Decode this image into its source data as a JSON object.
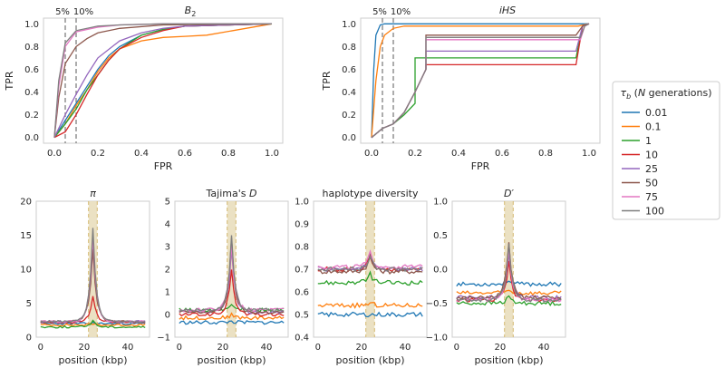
{
  "colors": {
    "0.01": "#1f77b4",
    "0.1": "#ff7f0e",
    "1": "#2ca02c",
    "10": "#d62728",
    "25": "#9467bd",
    "50": "#8c564b",
    "75": "#e377c2",
    "100": "#7f7f7f",
    "threshold_line": "#7f7f7f",
    "shade": "#e8dcb8",
    "shade_edge": "#d4b870"
  },
  "legend": {
    "title": "τ_b (N generations)",
    "entries": [
      "0.01",
      "0.1",
      "1",
      "10",
      "25",
      "50",
      "75",
      "100"
    ]
  },
  "chart_data": [
    {
      "id": "roc-b2",
      "type": "line",
      "title": "B2",
      "title_main": "B",
      "title_sub": "2",
      "xlabel": "FPR",
      "ylabel": "TPR",
      "xlim": [
        -0.05,
        1.05
      ],
      "ylim": [
        -0.05,
        1.05
      ],
      "xticks": [
        "0.0",
        "0.2",
        "0.4",
        "0.6",
        "0.8",
        "1.0"
      ],
      "yticks": [
        "0.0",
        "0.2",
        "0.4",
        "0.6",
        "0.8",
        "1.0"
      ],
      "thresholds": [
        {
          "label": "5%",
          "x": 0.05
        },
        {
          "label": "10%",
          "x": 0.1
        }
      ],
      "series": [
        {
          "name": "0.01",
          "x": [
            0,
            0.05,
            0.1,
            0.15,
            0.2,
            0.25,
            0.3,
            0.4,
            0.5,
            0.6,
            1.0
          ],
          "y": [
            0,
            0.15,
            0.3,
            0.45,
            0.6,
            0.72,
            0.8,
            0.9,
            0.95,
            0.98,
            1.0
          ]
        },
        {
          "name": "0.1",
          "x": [
            0,
            0.05,
            0.1,
            0.15,
            0.2,
            0.25,
            0.3,
            0.4,
            0.5,
            0.6,
            0.7,
            1.0
          ],
          "y": [
            0,
            0.12,
            0.28,
            0.42,
            0.58,
            0.7,
            0.78,
            0.85,
            0.88,
            0.89,
            0.9,
            1.0
          ]
        },
        {
          "name": "1",
          "x": [
            0,
            0.05,
            0.1,
            0.15,
            0.2,
            0.25,
            0.3,
            0.4,
            0.5,
            0.6,
            1.0
          ],
          "y": [
            0,
            0.12,
            0.25,
            0.42,
            0.55,
            0.68,
            0.78,
            0.9,
            0.95,
            0.98,
            1.0
          ]
        },
        {
          "name": "10",
          "x": [
            0,
            0.05,
            0.1,
            0.15,
            0.2,
            0.25,
            0.3,
            0.4,
            0.5,
            0.6,
            1.0
          ],
          "y": [
            0,
            0.05,
            0.2,
            0.38,
            0.55,
            0.68,
            0.78,
            0.88,
            0.94,
            0.98,
            1.0
          ]
        },
        {
          "name": "25",
          "x": [
            0,
            0.05,
            0.1,
            0.15,
            0.2,
            0.3,
            0.4,
            0.5,
            0.6,
            1.0
          ],
          "y": [
            0,
            0.2,
            0.38,
            0.55,
            0.7,
            0.85,
            0.92,
            0.96,
            0.98,
            1.0
          ]
        },
        {
          "name": "50",
          "x": [
            0,
            0.02,
            0.05,
            0.1,
            0.15,
            0.2,
            0.3,
            0.5,
            1.0
          ],
          "y": [
            0,
            0.35,
            0.65,
            0.8,
            0.87,
            0.92,
            0.96,
            0.99,
            1.0
          ]
        },
        {
          "name": "75",
          "x": [
            0,
            0.02,
            0.05,
            0.1,
            0.2,
            0.3,
            0.5,
            1.0
          ],
          "y": [
            0,
            0.45,
            0.8,
            0.93,
            0.97,
            0.99,
            1.0,
            1.0
          ]
        },
        {
          "name": "100",
          "x": [
            0,
            0.02,
            0.05,
            0.1,
            0.2,
            0.3,
            0.5,
            1.0
          ],
          "y": [
            0,
            0.5,
            0.83,
            0.94,
            0.98,
            0.99,
            1.0,
            1.0
          ]
        }
      ]
    },
    {
      "id": "roc-ihs",
      "type": "line",
      "title": "iHS",
      "title_main": "iHS",
      "title_sub": "",
      "xlabel": "FPR",
      "ylabel": "TPR",
      "xlim": [
        -0.05,
        1.05
      ],
      "ylim": [
        -0.05,
        1.05
      ],
      "xticks": [
        "0.0",
        "0.2",
        "0.4",
        "0.6",
        "0.8",
        "1.0"
      ],
      "yticks": [
        "0.0",
        "0.2",
        "0.4",
        "0.6",
        "0.8",
        "1.0"
      ],
      "thresholds": [
        {
          "label": "5%",
          "x": 0.05
        },
        {
          "label": "10%",
          "x": 0.1
        }
      ],
      "series": [
        {
          "name": "0.01",
          "x": [
            0,
            0.01,
            0.02,
            0.04,
            0.06,
            1.0
          ],
          "y": [
            0,
            0.6,
            0.9,
            0.99,
            1.0,
            1.0
          ]
        },
        {
          "name": "0.1",
          "x": [
            0,
            0.02,
            0.04,
            0.06,
            0.1,
            0.15,
            0.95,
            1.0
          ],
          "y": [
            0,
            0.5,
            0.8,
            0.9,
            0.96,
            0.98,
            0.98,
            1.0
          ]
        },
        {
          "name": "1",
          "x": [
            0,
            0.05,
            0.1,
            0.15,
            0.2,
            0.2,
            0.94,
            0.97,
            1.0
          ],
          "y": [
            0,
            0.08,
            0.12,
            0.2,
            0.3,
            0.7,
            0.7,
            0.98,
            1.0
          ]
        },
        {
          "name": "10",
          "x": [
            0,
            0.05,
            0.1,
            0.15,
            0.2,
            0.25,
            0.25,
            0.94,
            0.97,
            1.0
          ],
          "y": [
            0,
            0.08,
            0.12,
            0.22,
            0.4,
            0.6,
            0.64,
            0.64,
            0.98,
            1.0
          ]
        },
        {
          "name": "25",
          "x": [
            0,
            0.05,
            0.1,
            0.15,
            0.2,
            0.25,
            0.25,
            0.94,
            0.97,
            1.0
          ],
          "y": [
            0,
            0.08,
            0.12,
            0.22,
            0.4,
            0.6,
            0.76,
            0.76,
            0.98,
            1.0
          ]
        },
        {
          "name": "50",
          "x": [
            0,
            0.05,
            0.1,
            0.15,
            0.2,
            0.25,
            0.25,
            0.94,
            0.97,
            1.0
          ],
          "y": [
            0,
            0.08,
            0.12,
            0.22,
            0.4,
            0.6,
            0.9,
            0.9,
            0.98,
            1.0
          ]
        },
        {
          "name": "75",
          "x": [
            0,
            0.05,
            0.1,
            0.15,
            0.2,
            0.25,
            0.25,
            0.96,
            0.98,
            1.0
          ],
          "y": [
            0,
            0.08,
            0.12,
            0.22,
            0.4,
            0.6,
            0.86,
            0.86,
            0.98,
            1.0
          ]
        },
        {
          "name": "100",
          "x": [
            0,
            0.05,
            0.1,
            0.15,
            0.2,
            0.25,
            0.25,
            0.96,
            0.98,
            1.0
          ],
          "y": [
            0,
            0.08,
            0.12,
            0.22,
            0.4,
            0.6,
            0.88,
            0.88,
            0.98,
            1.0
          ]
        }
      ]
    },
    {
      "id": "stat-pi",
      "type": "line",
      "title": "π",
      "title_main": "π",
      "title_sub": "",
      "xlabel": "position (kbp)",
      "ylabel": "",
      "xlim": [
        -2,
        50
      ],
      "ylim": [
        0,
        20
      ],
      "xticks": [
        "0",
        "20",
        "40"
      ],
      "yticks": [
        "0",
        "5",
        "10",
        "15",
        "20"
      ],
      "xtick_values": [
        0,
        20,
        40
      ],
      "ytick_values": [
        0,
        5,
        10,
        15,
        20
      ],
      "shade": [
        22,
        26
      ],
      "series": [
        {
          "name": "0.01",
          "baseline": 2.0,
          "peak": 2.1,
          "noise": 0.15
        },
        {
          "name": "0.1",
          "baseline": 1.8,
          "peak": 2.0,
          "noise": 0.15
        },
        {
          "name": "1",
          "baseline": 1.5,
          "peak": 2.5,
          "noise": 0.15
        },
        {
          "name": "10",
          "baseline": 2.2,
          "peak": 6.0,
          "noise": 0.15
        },
        {
          "name": "25",
          "baseline": 2.3,
          "peak": 14.0,
          "noise": 0.15
        },
        {
          "name": "50",
          "baseline": 2.3,
          "peak": 13.0,
          "noise": 0.15
        },
        {
          "name": "75",
          "baseline": 2.3,
          "peak": 15.0,
          "noise": 0.15
        },
        {
          "name": "100",
          "baseline": 2.3,
          "peak": 16.0,
          "noise": 0.15
        }
      ]
    },
    {
      "id": "stat-tajima",
      "type": "line",
      "title": "Tajima's D",
      "title_main": "Tajima's ",
      "title_it": "D",
      "title_sub": "",
      "xlabel": "position (kbp)",
      "ylabel": "",
      "xlim": [
        -2,
        50
      ],
      "ylim": [
        -1,
        5
      ],
      "xticks": [
        "0",
        "20",
        "40"
      ],
      "yticks": [
        "−1",
        "0",
        "1",
        "2",
        "3",
        "4",
        "5"
      ],
      "xtick_values": [
        0,
        20,
        40
      ],
      "ytick_values": [
        -1,
        0,
        1,
        2,
        3,
        4,
        5
      ],
      "shade": [
        22,
        26
      ],
      "series": [
        {
          "name": "0.01",
          "baseline": -0.35,
          "peak": -0.3,
          "noise": 0.08
        },
        {
          "name": "0.1",
          "baseline": -0.15,
          "peak": 0.0,
          "noise": 0.08
        },
        {
          "name": "1",
          "baseline": 0.2,
          "peak": 0.5,
          "noise": 0.08
        },
        {
          "name": "10",
          "baseline": 0.0,
          "peak": 2.0,
          "noise": 0.08
        },
        {
          "name": "25",
          "baseline": 0.1,
          "peak": 2.9,
          "noise": 0.08
        },
        {
          "name": "50",
          "baseline": 0.1,
          "peak": 3.3,
          "noise": 0.08
        },
        {
          "name": "75",
          "baseline": 0.2,
          "peak": 3.1,
          "noise": 0.08
        },
        {
          "name": "100",
          "baseline": 0.2,
          "peak": 3.5,
          "noise": 0.08
        }
      ]
    },
    {
      "id": "stat-hapdiv",
      "type": "line",
      "title": "haplotype diversity",
      "title_main": "haplotype diversity",
      "title_sub": "",
      "xlabel": "position (kbp)",
      "ylabel": "",
      "xlim": [
        -2,
        50
      ],
      "ylim": [
        0.4,
        1.0
      ],
      "xticks": [
        "0",
        "20",
        "40"
      ],
      "yticks": [
        "0.4",
        "0.5",
        "0.6",
        "0.7",
        "0.8",
        "0.9",
        "1.0"
      ],
      "xtick_values": [
        0,
        20,
        40
      ],
      "ytick_values": [
        0.4,
        0.5,
        0.6,
        0.7,
        0.8,
        0.9,
        1.0
      ],
      "shade": [
        22,
        26
      ],
      "series": [
        {
          "name": "0.01",
          "baseline": 0.5,
          "peak": 0.5,
          "noise": 0.01
        },
        {
          "name": "0.1",
          "baseline": 0.54,
          "peak": 0.55,
          "noise": 0.01
        },
        {
          "name": "1",
          "baseline": 0.64,
          "peak": 0.68,
          "noise": 0.01
        },
        {
          "name": "10",
          "baseline": 0.7,
          "peak": 0.76,
          "noise": 0.01
        },
        {
          "name": "25",
          "baseline": 0.7,
          "peak": 0.76,
          "noise": 0.01
        },
        {
          "name": "50",
          "baseline": 0.69,
          "peak": 0.76,
          "noise": 0.01
        },
        {
          "name": "75",
          "baseline": 0.71,
          "peak": 0.77,
          "noise": 0.01
        },
        {
          "name": "100",
          "baseline": 0.7,
          "peak": 0.76,
          "noise": 0.01
        }
      ]
    },
    {
      "id": "stat-dprime",
      "type": "line",
      "title": "D'",
      "title_main": "",
      "title_it": "D′",
      "title_sub": "",
      "xlabel": "position (kbp)",
      "ylabel": "",
      "xlim": [
        -2,
        50
      ],
      "ylim": [
        -1.0,
        1.0
      ],
      "xticks": [
        "0",
        "20",
        "40"
      ],
      "yticks": [
        "−1.0",
        "−0.5",
        "0.0",
        "0.5",
        "1.0"
      ],
      "xtick_values": [
        0,
        20,
        40
      ],
      "ytick_values": [
        -1.0,
        -0.5,
        0.0,
        0.5,
        1.0
      ],
      "shade": [
        22,
        26
      ],
      "series": [
        {
          "name": "0.01",
          "baseline": -0.22,
          "peak": -0.15,
          "noise": 0.03
        },
        {
          "name": "0.1",
          "baseline": -0.35,
          "peak": -0.3,
          "noise": 0.03
        },
        {
          "name": "1",
          "baseline": -0.5,
          "peak": -0.4,
          "noise": 0.03
        },
        {
          "name": "10",
          "baseline": -0.45,
          "peak": 0.1,
          "noise": 0.03
        },
        {
          "name": "25",
          "baseline": -0.42,
          "peak": 0.25,
          "noise": 0.03
        },
        {
          "name": "50",
          "baseline": -0.42,
          "peak": 0.4,
          "noise": 0.03
        },
        {
          "name": "75",
          "baseline": -0.45,
          "peak": 0.3,
          "noise": 0.03
        },
        {
          "name": "100",
          "baseline": -0.45,
          "peak": 0.35,
          "noise": 0.03
        }
      ]
    }
  ]
}
